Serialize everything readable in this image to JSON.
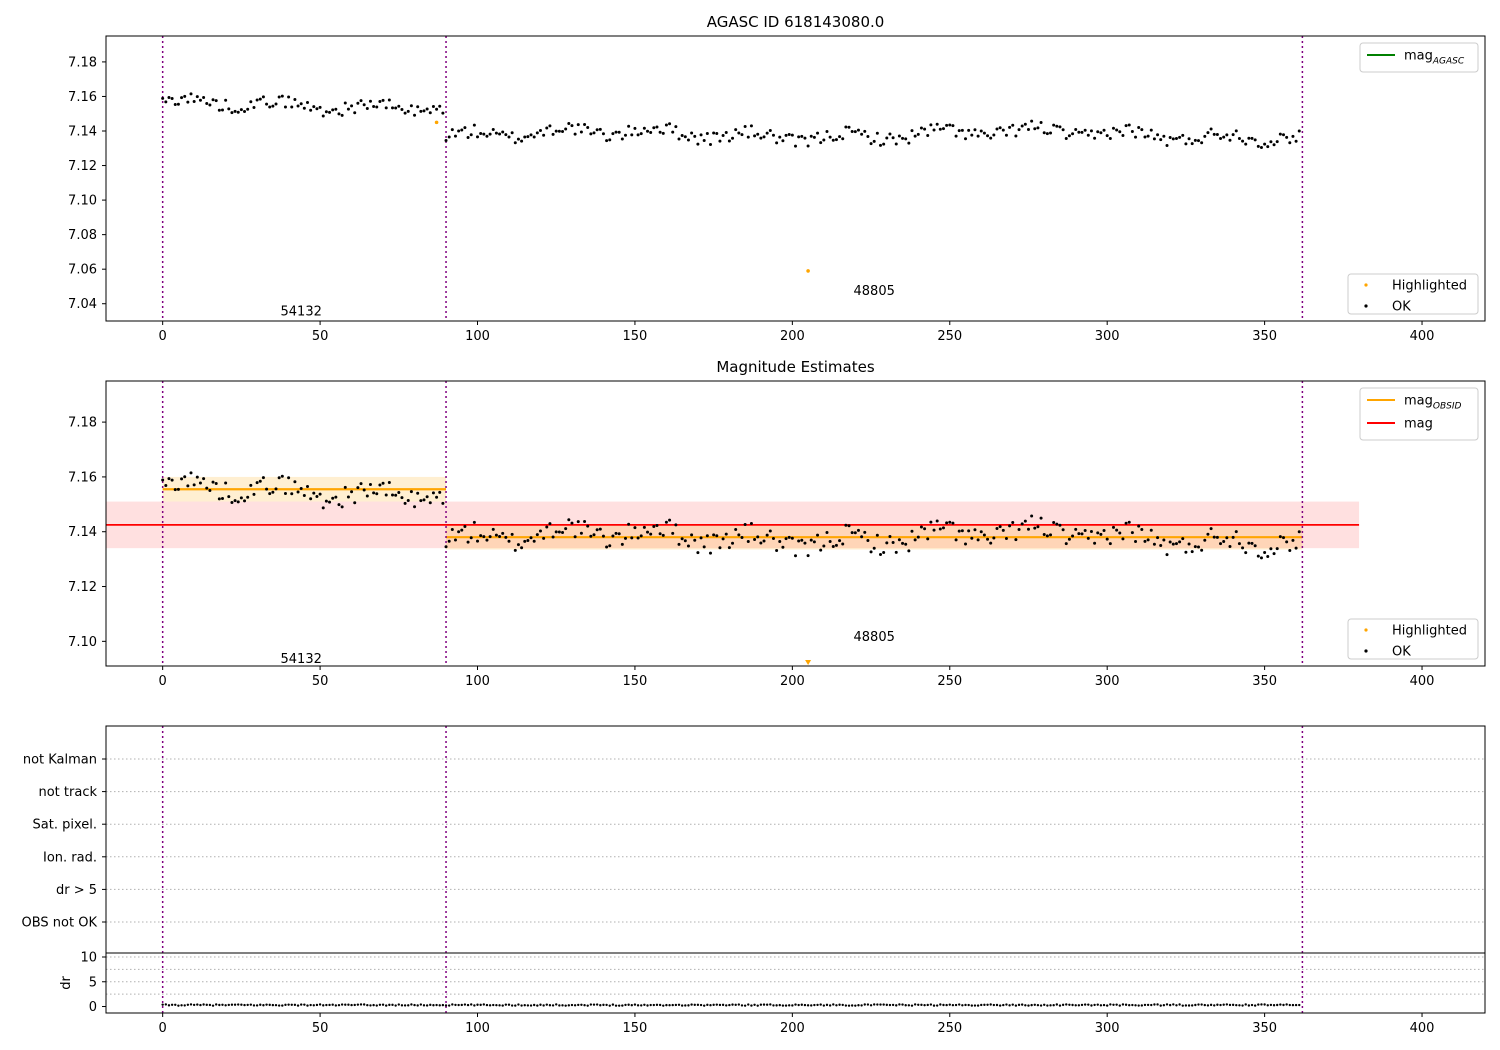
{
  "chart_data": [
    {
      "type": "scatter",
      "title": "AGASC ID 618143080.0",
      "xlim": [
        -18,
        420
      ],
      "ylim": [
        7.03,
        7.195
      ],
      "xticks": [
        "0",
        "50",
        "100",
        "150",
        "200",
        "250",
        "300",
        "350",
        "400"
      ],
      "yticks": [
        "7.04",
        "7.06",
        "7.08",
        "7.10",
        "7.12",
        "7.14",
        "7.16",
        "7.18"
      ],
      "vlines": [
        0,
        90,
        362
      ],
      "obsid_labels": [
        {
          "text": "54132",
          "x": 44,
          "y": 7.036
        },
        {
          "text": "48805",
          "x": 226,
          "y": 7.048
        }
      ],
      "legend_upper": [
        {
          "label": "mag",
          "sub": "AGASC",
          "color": "#008000"
        }
      ],
      "legend_lower": [
        {
          "label": "Highlighted",
          "color": "#ffa500"
        },
        {
          "label": "OK",
          "color": "#000000"
        }
      ],
      "highlighted": [
        {
          "x": 87,
          "y": 7.145
        },
        {
          "x": 205,
          "y": 7.059
        }
      ],
      "segments": [
        {
          "x0": 0,
          "x1": 90,
          "mean": 7.155,
          "amp": 0.005
        },
        {
          "x0": 90,
          "x1": 362,
          "mean": 7.138,
          "amp": 0.0055
        }
      ]
    },
    {
      "type": "scatter",
      "title": "Magnitude Estimates",
      "xlim": [
        -18,
        420
      ],
      "ylim": [
        7.091,
        7.195
      ],
      "xticks": [
        "0",
        "50",
        "100",
        "150",
        "200",
        "250",
        "300",
        "350",
        "400"
      ],
      "yticks": [
        "7.10",
        "7.12",
        "7.14",
        "7.16",
        "7.18"
      ],
      "vlines": [
        0,
        90,
        362
      ],
      "obsid_labels": [
        {
          "text": "54132",
          "x": 44,
          "y": 7.094
        },
        {
          "text": "48805",
          "x": 226,
          "y": 7.102
        }
      ],
      "legend_upper": [
        {
          "label": "mag",
          "sub": "OBSID",
          "color": "#ffa500"
        },
        {
          "label": "mag",
          "sub": "",
          "color": "#ff0000"
        }
      ],
      "legend_lower": [
        {
          "label": "Highlighted",
          "color": "#ffa500"
        },
        {
          "label": "OK",
          "color": "#000000"
        }
      ],
      "mag": {
        "value": 7.1425,
        "band": [
          7.134,
          7.151
        ],
        "x0": -18,
        "x1": 380
      },
      "obsid_mags": [
        {
          "x0": 0,
          "x1": 90,
          "value": 7.1555,
          "band": [
            7.151,
            7.16
          ]
        },
        {
          "x0": 90,
          "x1": 362,
          "value": 7.138,
          "band": [
            7.1335,
            7.1425
          ]
        }
      ],
      "offscale_marker_x": 205,
      "segments": [
        {
          "x0": 0,
          "x1": 90,
          "mean": 7.155,
          "amp": 0.005
        },
        {
          "x0": 90,
          "x1": 362,
          "mean": 7.138,
          "amp": 0.0055
        }
      ]
    },
    {
      "type": "scatter",
      "title": "",
      "xlim": [
        -18,
        420
      ],
      "flag_categories": [
        "not Kalman",
        "not track",
        "Sat. pixel.",
        "Ion. rad.",
        "dr > 5",
        "OBS not OK"
      ],
      "dr_ylabel": "dr",
      "dr_yticks": [
        "0",
        "5",
        "10"
      ],
      "dr_ylim": [
        -0.5,
        10
      ],
      "xticks": [
        "0",
        "50",
        "100",
        "150",
        "200",
        "250",
        "300",
        "350",
        "400"
      ],
      "vlines": [
        0,
        90,
        362
      ],
      "dr_value_typical": 0.3
    }
  ]
}
